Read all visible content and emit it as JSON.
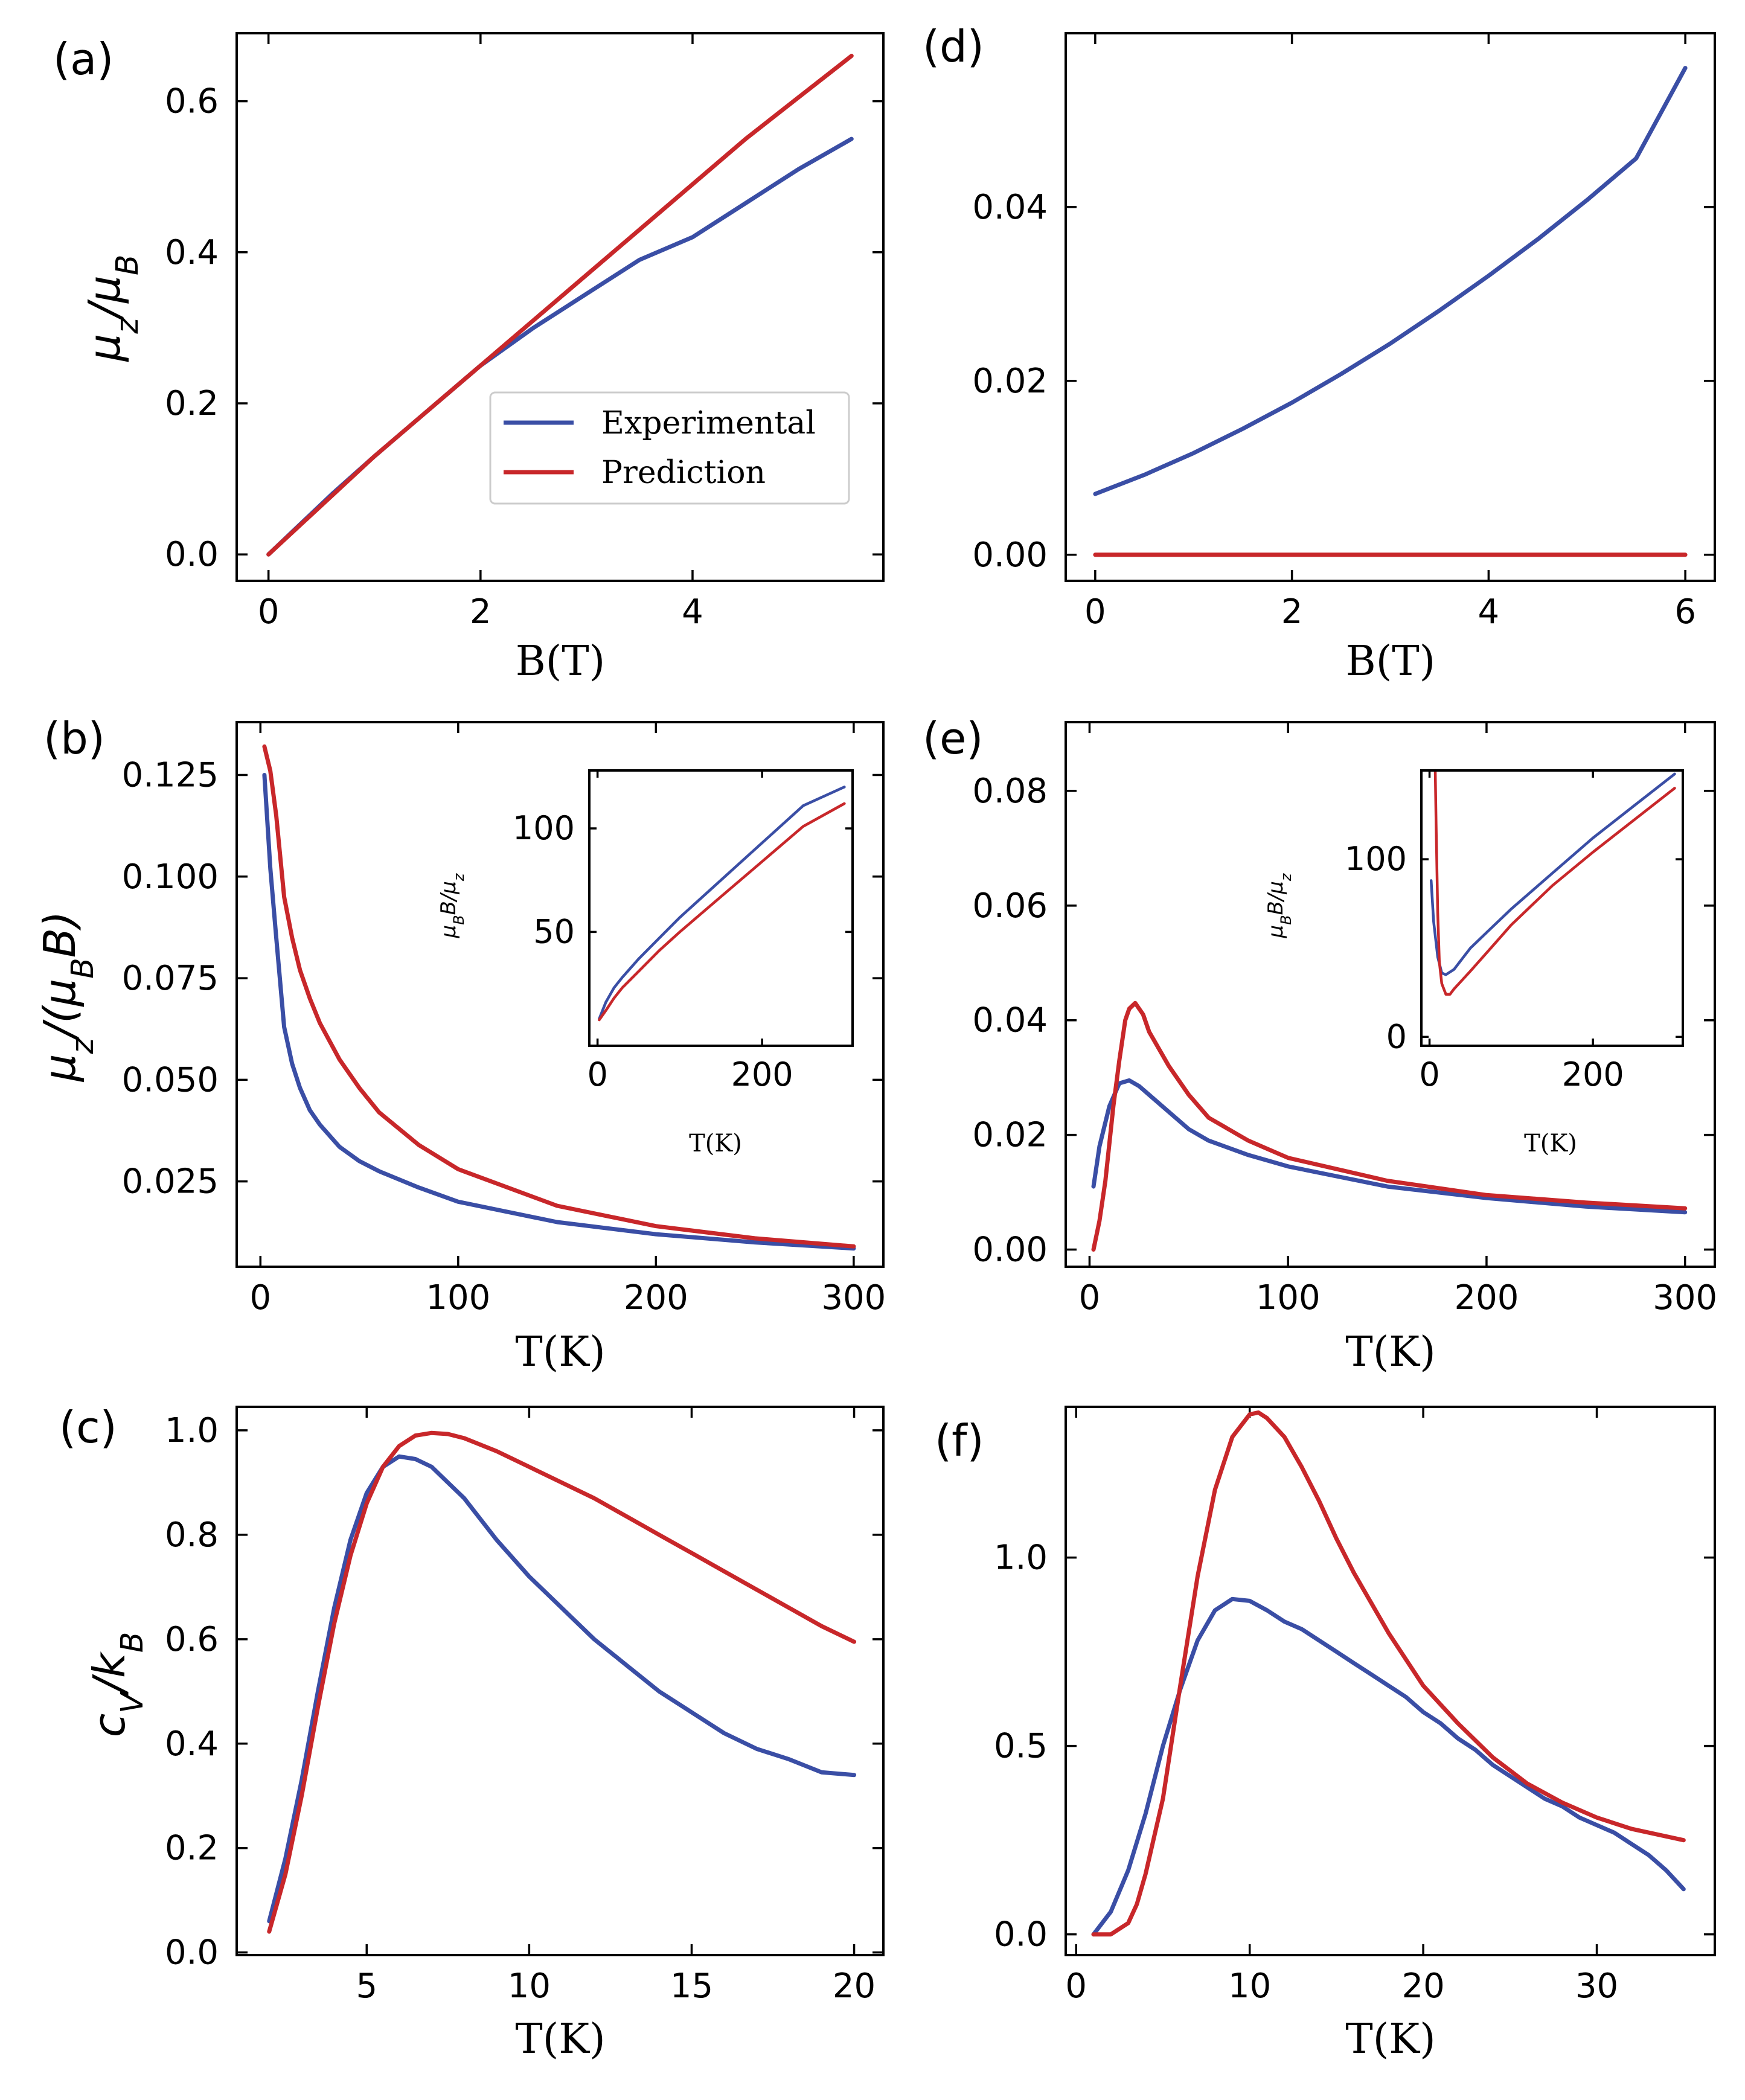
{
  "colors": {
    "experimental": "#3a4ea5",
    "prediction": "#c8272a"
  },
  "chart_data": [
    {
      "id": "a",
      "panel_label": "(a)",
      "type": "line",
      "xlabel": "B(T)",
      "ylabel": {
        "base": "μ",
        "sub": "z",
        "mid": "/μ",
        "sub2": "B",
        "end": ""
      },
      "xlim": [
        -0.3,
        5.8
      ],
      "ylim": [
        -0.035,
        0.69
      ],
      "xticks": [
        0,
        2,
        4
      ],
      "xtick_labels": [
        "0",
        "2",
        "4"
      ],
      "yticks": [
        0,
        0.2,
        0.4,
        0.6
      ],
      "ytick_labels": [
        "0.0",
        "0.2",
        "0.4",
        "0.6"
      ],
      "legend": {
        "position": "lower-right",
        "entries": [
          "Experimental",
          "Prediction"
        ]
      },
      "series": [
        {
          "name": "Experimental",
          "x": [
            0,
            0.3,
            0.6,
            1.0,
            1.5,
            2.0,
            2.5,
            3.0,
            3.5,
            4.0,
            4.5,
            5.0,
            5.5
          ],
          "y": [
            0,
            0.04,
            0.08,
            0.13,
            0.19,
            0.25,
            0.3,
            0.345,
            0.39,
            0.42,
            0.465,
            0.51,
            0.55
          ]
        },
        {
          "name": "Prediction",
          "x": [
            0,
            0.5,
            1.0,
            1.5,
            2.0,
            2.5,
            3.0,
            3.5,
            4.0,
            4.5,
            5.0,
            5.5
          ],
          "y": [
            0,
            0.065,
            0.13,
            0.19,
            0.25,
            0.31,
            0.37,
            0.43,
            0.49,
            0.55,
            0.605,
            0.66
          ]
        }
      ]
    },
    {
      "id": "b",
      "panel_label": "(b)",
      "type": "line",
      "xlabel": "T(K)",
      "ylabel": {
        "base": "μ",
        "sub": "z",
        "mid": "/(μ",
        "sub2": "B",
        "end": "B)"
      },
      "xlim": [
        -12,
        315
      ],
      "ylim": [
        0.004,
        0.138
      ],
      "xticks": [
        0,
        100,
        200,
        300
      ],
      "xtick_labels": [
        "0",
        "100",
        "200",
        "300"
      ],
      "yticks": [
        0.025,
        0.05,
        0.075,
        0.1,
        0.125
      ],
      "ytick_labels": [
        "0.025",
        "0.050",
        "0.075",
        "0.100",
        "0.125"
      ],
      "series": [
        {
          "name": "Experimental",
          "x": [
            2,
            5,
            8,
            12,
            16,
            20,
            25,
            30,
            40,
            50,
            60,
            80,
            100,
            150,
            200,
            250,
            300
          ],
          "y": [
            0.125,
            0.102,
            0.085,
            0.063,
            0.054,
            0.048,
            0.0425,
            0.039,
            0.0335,
            0.03,
            0.0275,
            0.0235,
            0.02,
            0.015,
            0.012,
            0.01,
            0.0085
          ]
        },
        {
          "name": "Prediction",
          "x": [
            2,
            5,
            8,
            12,
            16,
            20,
            25,
            30,
            40,
            50,
            60,
            80,
            100,
            150,
            200,
            250,
            300
          ],
          "y": [
            0.132,
            0.126,
            0.115,
            0.095,
            0.085,
            0.077,
            0.07,
            0.064,
            0.055,
            0.048,
            0.042,
            0.034,
            0.028,
            0.019,
            0.014,
            0.011,
            0.009
          ]
        }
      ],
      "inset": {
        "xlabel": "T(K)",
        "ylabel": {
          "a": "μ",
          "asub": "B",
          "b": "B/μ",
          "bsub": "z"
        },
        "xlim": [
          -10,
          310
        ],
        "ylim": [
          -5,
          128
        ],
        "xticks": [
          0,
          200
        ],
        "xtick_labels": [
          "0",
          "200"
        ],
        "yticks": [
          50,
          100
        ],
        "ytick_labels": [
          "50",
          "100"
        ],
        "series": [
          {
            "name": "Experimental",
            "x": [
              2,
              10,
              20,
              30,
              50,
              75,
              100,
              150,
              200,
              250,
              300
            ],
            "y": [
              8,
              16,
              23,
              28,
              37,
              47,
              57,
              75,
              93,
              111,
              120
            ]
          },
          {
            "name": "Prediction",
            "x": [
              2,
              10,
              20,
              30,
              50,
              75,
              100,
              150,
              200,
              250,
              300
            ],
            "y": [
              7.5,
              12,
              18,
              23,
              31,
              41,
              50,
              67,
              84,
              101,
              112
            ]
          }
        ]
      }
    },
    {
      "id": "c",
      "panel_label": "(c)",
      "type": "line",
      "xlabel": "T(K)",
      "ylabel": {
        "base": "c",
        "sub": "V",
        "mid": "/k",
        "sub2": "B",
        "end": ""
      },
      "xlim": [
        1.0,
        20.9
      ],
      "ylim": [
        -0.005,
        1.045
      ],
      "xticks": [
        5,
        10,
        15,
        20
      ],
      "xtick_labels": [
        "5",
        "10",
        "15",
        "20"
      ],
      "yticks": [
        0,
        0.2,
        0.4,
        0.6,
        0.8,
        1.0
      ],
      "ytick_labels": [
        "0.0",
        "0.2",
        "0.4",
        "0.6",
        "0.8",
        "1.0"
      ],
      "series": [
        {
          "name": "Experimental",
          "x": [
            2,
            2.5,
            3,
            3.5,
            4,
            4.5,
            5,
            5.5,
            6,
            6.5,
            7,
            7.5,
            8,
            8.5,
            9,
            10,
            11,
            12,
            13,
            14,
            15,
            16,
            17,
            18,
            19,
            20
          ],
          "y": [
            0.06,
            0.18,
            0.33,
            0.5,
            0.66,
            0.79,
            0.88,
            0.93,
            0.95,
            0.945,
            0.93,
            0.9,
            0.87,
            0.83,
            0.79,
            0.72,
            0.66,
            0.6,
            0.55,
            0.5,
            0.46,
            0.42,
            0.39,
            0.37,
            0.345,
            0.34
          ]
        },
        {
          "name": "Prediction",
          "x": [
            2,
            2.5,
            3,
            3.5,
            4,
            4.5,
            5,
            5.5,
            6,
            6.5,
            7,
            7.5,
            8,
            9,
            10,
            11,
            12,
            13,
            14,
            15,
            16,
            17,
            18,
            19,
            20
          ],
          "y": [
            0.04,
            0.15,
            0.3,
            0.47,
            0.63,
            0.76,
            0.86,
            0.93,
            0.97,
            0.99,
            0.995,
            0.993,
            0.985,
            0.96,
            0.93,
            0.9,
            0.87,
            0.835,
            0.8,
            0.765,
            0.73,
            0.695,
            0.66,
            0.625,
            0.595
          ]
        }
      ]
    },
    {
      "id": "d",
      "panel_label": "(d)",
      "type": "line",
      "xlabel": "B(T)",
      "ylabel": null,
      "xlim": [
        -0.3,
        6.3
      ],
      "ylim": [
        -0.003,
        0.06
      ],
      "xticks": [
        0,
        2,
        4,
        6
      ],
      "xtick_labels": [
        "0",
        "2",
        "4",
        "6"
      ],
      "yticks": [
        0,
        0.02,
        0.04
      ],
      "ytick_labels": [
        "0.00",
        "0.02",
        "0.04"
      ],
      "series": [
        {
          "name": "Experimental",
          "x": [
            0,
            0.5,
            1,
            1.5,
            2,
            2.5,
            3,
            3.5,
            4,
            4.5,
            5,
            5.5,
            6
          ],
          "y": [
            0.007,
            0.0092,
            0.0117,
            0.0145,
            0.0175,
            0.0208,
            0.0243,
            0.0281,
            0.0321,
            0.0363,
            0.0408,
            0.0456,
            0.056
          ]
        },
        {
          "name": "Prediction",
          "x": [
            0,
            6
          ],
          "y": [
            0,
            0
          ]
        }
      ]
    },
    {
      "id": "e",
      "panel_label": "(e)",
      "type": "line",
      "xlabel": "T(K)",
      "ylabel": null,
      "xlim": [
        -12,
        315
      ],
      "ylim": [
        -0.003,
        0.092
      ],
      "xticks": [
        0,
        100,
        200,
        300
      ],
      "xtick_labels": [
        "0",
        "100",
        "200",
        "300"
      ],
      "yticks": [
        0,
        0.02,
        0.04,
        0.06,
        0.08
      ],
      "ytick_labels": [
        "0.00",
        "0.02",
        "0.04",
        "0.06",
        "0.08"
      ],
      "series": [
        {
          "name": "Experimental",
          "x": [
            2,
            5,
            10,
            15,
            20,
            25,
            30,
            40,
            50,
            60,
            80,
            100,
            150,
            200,
            250,
            300
          ],
          "y": [
            0.011,
            0.018,
            0.025,
            0.029,
            0.0295,
            0.0285,
            0.027,
            0.024,
            0.021,
            0.019,
            0.0165,
            0.0145,
            0.011,
            0.009,
            0.0075,
            0.0065
          ]
        },
        {
          "name": "Prediction",
          "x": [
            2,
            5,
            8,
            12,
            15,
            18,
            20,
            23,
            27,
            30,
            40,
            50,
            60,
            80,
            100,
            150,
            200,
            250,
            300
          ],
          "y": [
            0,
            0.005,
            0.012,
            0.025,
            0.033,
            0.04,
            0.042,
            0.043,
            0.041,
            0.038,
            0.032,
            0.027,
            0.023,
            0.019,
            0.016,
            0.012,
            0.0095,
            0.0082,
            0.0072
          ]
        }
      ],
      "inset": {
        "xlabel": "T(K)",
        "ylabel": {
          "a": "μ",
          "asub": "B",
          "b": "B/μ",
          "bsub": "z"
        },
        "xlim": [
          -10,
          310
        ],
        "ylim": [
          -5,
          150
        ],
        "xticks": [
          0,
          200
        ],
        "xtick_labels": [
          "0",
          "200"
        ],
        "yticks": [
          0,
          100
        ],
        "ytick_labels": [
          "0",
          "100"
        ],
        "series": [
          {
            "name": "Experimental",
            "x": [
              2,
              5,
              10,
              15,
              20,
              30,
              40,
              50,
              75,
              100,
              150,
              200,
              250,
              300
            ],
            "y": [
              88,
              65,
              45,
              36,
              35,
              38,
              44,
              50,
              61,
              72,
              92,
              112,
              130,
              148
            ]
          },
          {
            "name": "Prediction",
            "x": [
              7,
              8,
              10,
              12,
              15,
              20,
              25,
              30,
              50,
              75,
              100,
              150,
              200,
              250,
              300
            ],
            "y": [
              150,
              120,
              70,
              42,
              30,
              24,
              24,
              27,
              37,
              50,
              63,
              85,
              104,
              122,
              140
            ]
          }
        ]
      }
    },
    {
      "id": "f",
      "panel_label": "(f)",
      "type": "line",
      "xlabel": "T(K)",
      "ylabel": null,
      "xlim": [
        -0.6,
        36.8
      ],
      "ylim": [
        -0.055,
        1.4
      ],
      "xticks": [
        0,
        10,
        20,
        30
      ],
      "xtick_labels": [
        "0",
        "10",
        "20",
        "30"
      ],
      "yticks": [
        0,
        0.5,
        1.0
      ],
      "ytick_labels": [
        "0.0",
        "0.5",
        "1.0"
      ],
      "series": [
        {
          "name": "Experimental",
          "x": [
            1,
            2,
            3,
            4,
            5,
            6,
            7,
            8,
            9,
            10,
            11,
            12,
            13,
            14,
            15,
            16,
            17,
            18,
            19,
            20,
            21,
            22,
            23,
            24,
            25,
            26,
            27,
            28,
            29,
            30,
            31,
            32,
            33,
            34,
            35
          ],
          "y": [
            0,
            0.06,
            0.17,
            0.32,
            0.5,
            0.65,
            0.78,
            0.86,
            0.89,
            0.885,
            0.86,
            0.83,
            0.81,
            0.78,
            0.75,
            0.72,
            0.69,
            0.66,
            0.63,
            0.59,
            0.56,
            0.52,
            0.49,
            0.45,
            0.42,
            0.39,
            0.36,
            0.34,
            0.31,
            0.29,
            0.27,
            0.24,
            0.21,
            0.17,
            0.12
          ]
        },
        {
          "name": "Prediction",
          "x": [
            1,
            2,
            3,
            3.5,
            4,
            5,
            6,
            7,
            8,
            9,
            10,
            10.5,
            11,
            12,
            13,
            14,
            15,
            16,
            18,
            20,
            22,
            24,
            26,
            28,
            30,
            32,
            35
          ],
          "y": [
            0,
            0,
            0.03,
            0.08,
            0.16,
            0.36,
            0.66,
            0.95,
            1.18,
            1.32,
            1.38,
            1.385,
            1.37,
            1.32,
            1.24,
            1.15,
            1.05,
            0.96,
            0.8,
            0.66,
            0.56,
            0.47,
            0.4,
            0.35,
            0.31,
            0.28,
            0.25
          ]
        }
      ]
    }
  ]
}
